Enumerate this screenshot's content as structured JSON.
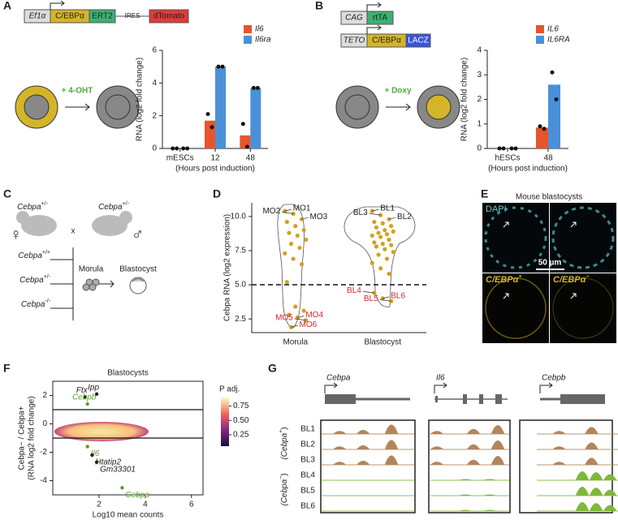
{
  "panels": {
    "A": {
      "letter": "A",
      "construct": {
        "promoter": "Ef1α",
        "gene": "C/EBPα",
        "fusion": "ERT2",
        "linker": "IRES",
        "reporter": "dTomato"
      },
      "treatment": "+ 4-OHT"
    },
    "B": {
      "letter": "B",
      "construct_1": {
        "promoter": "CAG",
        "gene": "rtTA"
      },
      "construct_2": {
        "promoter": "TETO",
        "gene": "C/EBPα",
        "reporter": "LACZ"
      },
      "treatment": "+ Doxy"
    },
    "C": {
      "letter": "C",
      "female": {
        "text": "Cebpa",
        "sup": "+/-"
      },
      "male": {
        "text": "Cebpa",
        "sup": "+/-"
      },
      "female_symbol": "♀",
      "male_symbol": "♂",
      "cross": "x",
      "offspring": [
        {
          "text": "Cebpa",
          "sup": "+/+"
        },
        {
          "text": "Cebpa",
          "sup": "+/-"
        },
        {
          "text": "Cebpa",
          "sup": "-/-"
        }
      ],
      "stages": [
        "Morula",
        "Blastocyst"
      ]
    },
    "D": {
      "letter": "D"
    },
    "E": {
      "letter": "E",
      "title": "Mouse blastocysts",
      "stain": "DAPI",
      "positive": {
        "text": "C/EBPα",
        "sup": "+"
      },
      "negative": {
        "text": "C/EBPα",
        "sup": "−"
      },
      "scale_bar": "50 µm"
    },
    "F": {
      "letter": "F"
    },
    "G": {
      "letter": "G",
      "genes": [
        "Cebpa",
        "Il6",
        "Cebpb"
      ],
      "samples": [
        "BL1",
        "BL2",
        "BL3",
        "BL4",
        "BL5",
        "BL6"
      ],
      "groups": [
        {
          "text": "(Cebpa",
          "sup": "+",
          "end": ")"
        },
        {
          "text": "(Cebpa",
          "sup": "−",
          "end": ")"
        }
      ]
    }
  },
  "chart_data": [
    {
      "type": "bar",
      "categories": [
        "mESCs",
        "12",
        "48"
      ],
      "x_label": "(Hours post induction)",
      "y_label": "RNA (log2 fold change)",
      "ylim": [
        0,
        6
      ],
      "yticks": [
        0,
        2,
        4,
        6
      ],
      "series": [
        {
          "name": "Il6",
          "color": "#e8542c",
          "values": [
            0,
            1.7,
            0.8
          ],
          "replicates": [
            [
              0,
              0
            ],
            [
              2.1,
              1.3
            ],
            [
              1.5,
              0.1
            ]
          ]
        },
        {
          "name": "Il6ra",
          "color": "#4a90d9",
          "values": [
            0,
            5.0,
            3.7
          ],
          "replicates": [
            [
              0,
              0
            ],
            [
              5.0,
              5.0
            ],
            [
              3.7,
              3.7
            ]
          ]
        }
      ]
    },
    {
      "type": "bar",
      "categories": [
        "hESCs",
        "48"
      ],
      "x_label": "(Hours post induction)",
      "y_label": "RNA (log2 fold change)",
      "ylim": [
        0,
        4
      ],
      "yticks": [
        0,
        1,
        2,
        3,
        4
      ],
      "series": [
        {
          "name": "IL6",
          "color": "#e8542c",
          "values": [
            0,
            0.85
          ],
          "replicates": [
            [
              0,
              0
            ],
            [
              0.9,
              0.8
            ]
          ]
        },
        {
          "name": "IL6RA",
          "color": "#4a90d9",
          "values": [
            0,
            2.6
          ],
          "replicates": [
            [
              0,
              0
            ],
            [
              3.1,
              2.0
            ]
          ]
        }
      ]
    },
    {
      "type": "strip",
      "categories": [
        "Morula",
        "Blastocyst"
      ],
      "y_label": "Cebpa RNA (log2 expression)",
      "color": "#d4a11e",
      "threshold": 5,
      "ylim": [
        1.5,
        11
      ],
      "yticks": [
        2.5,
        {
          "value": 5,
          "label": "5.0"
        },
        7.5,
        {
          "value": 10,
          "label": "10.0"
        }
      ],
      "values": [
        [
          10.4,
          10.2,
          9.8,
          9.6,
          9.3,
          9.0,
          8.8,
          8.6,
          8.3,
          8.0,
          7.7,
          7.3,
          6.9,
          6.5,
          5.2,
          3.4,
          3.1,
          2.8,
          2.6,
          2.4,
          1.9
        ],
        [
          10.4,
          10.1,
          9.8,
          9.6,
          9.5,
          9.3,
          9.2,
          9.0,
          8.9,
          8.8,
          8.7,
          8.6,
          8.5,
          8.3,
          8.1,
          8.0,
          7.9,
          7.8,
          7.6,
          7.4,
          7.2,
          6.9,
          6.6,
          6.2,
          5.8,
          4.4,
          4.0,
          3.8
        ]
      ],
      "point_labels": [
        [
          "MO1",
          "MO2",
          "MO3",
          null,
          null,
          null,
          null,
          null,
          null,
          null,
          null,
          null,
          null,
          null,
          null,
          null,
          null,
          null,
          "MO4",
          "MO5",
          "MO6"
        ],
        [
          "BL1",
          "BL3",
          "BL2",
          null,
          null,
          null,
          null,
          null,
          null,
          null,
          null,
          null,
          null,
          null,
          null,
          null,
          null,
          null,
          null,
          null,
          null,
          null,
          null,
          null,
          null,
          "BL4",
          "BL6",
          "BL5"
        ]
      ]
    },
    {
      "type": "scatter",
      "title": "Blastocysts",
      "x_label": "Log10 mean counts",
      "y_label": [
        "Cebpa− / Cebpa+",
        "(RNA log2 fold change)"
      ],
      "xlim": [
        0,
        6.5
      ],
      "xticks": [
        2,
        4,
        6
      ],
      "ylim": [
        -5,
        3
      ],
      "yticks": [
        -4,
        -2,
        0,
        2
      ],
      "hlines": [
        1,
        -1
      ],
      "colorbar_title": "P adj.",
      "colorbar_lim": [
        0.05,
        0.9
      ],
      "colorbar_ticks": [
        {
          "value": 0.25,
          "label": "0.25"
        },
        {
          "value": 0.5,
          "label": "0.50"
        },
        {
          "value": 0.75,
          "label": "0.75"
        }
      ],
      "labels": [
        "Ftx",
        "Ipp",
        "Cebpb",
        "Il6",
        "Htatip2",
        "Gm33301",
        "Cebpa"
      ],
      "x": [
        1.4,
        1.9,
        1.5,
        1.5,
        1.7,
        1.9,
        3.0
      ],
      "values": [
        1.9,
        2.1,
        1.4,
        -1.6,
        -2.2,
        -2.7,
        -4.5
      ],
      "colors": [
        "#222222",
        "#222222",
        "#5aa02c",
        "#5aa02c",
        "#222222",
        "#222222",
        "#5aa02c"
      ]
    }
  ]
}
